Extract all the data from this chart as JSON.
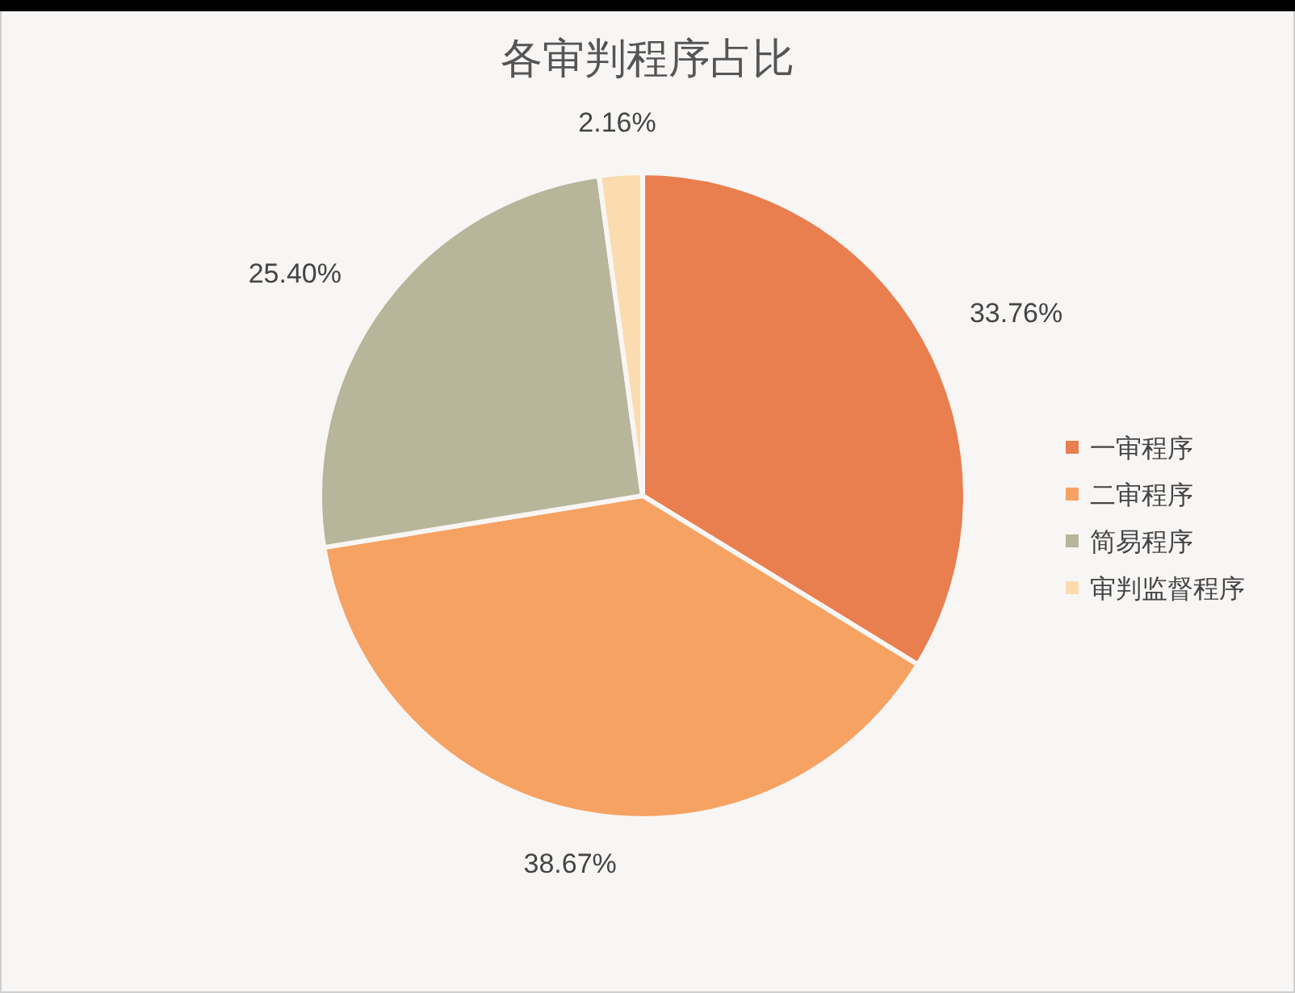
{
  "chart_data": {
    "type": "pie",
    "title": "各审判程序占比",
    "categories": [
      "一审程序",
      "二审程序",
      "简易程序",
      "审判监督程序"
    ],
    "values": [
      33.76,
      38.67,
      25.4,
      2.16
    ],
    "value_labels": [
      "33.76%",
      "38.67%",
      "25.40%",
      "2.16%"
    ],
    "colors": [
      "#e97e4f",
      "#f6a263",
      "#b7b59a",
      "#fbdcb0"
    ],
    "legend": "right"
  }
}
